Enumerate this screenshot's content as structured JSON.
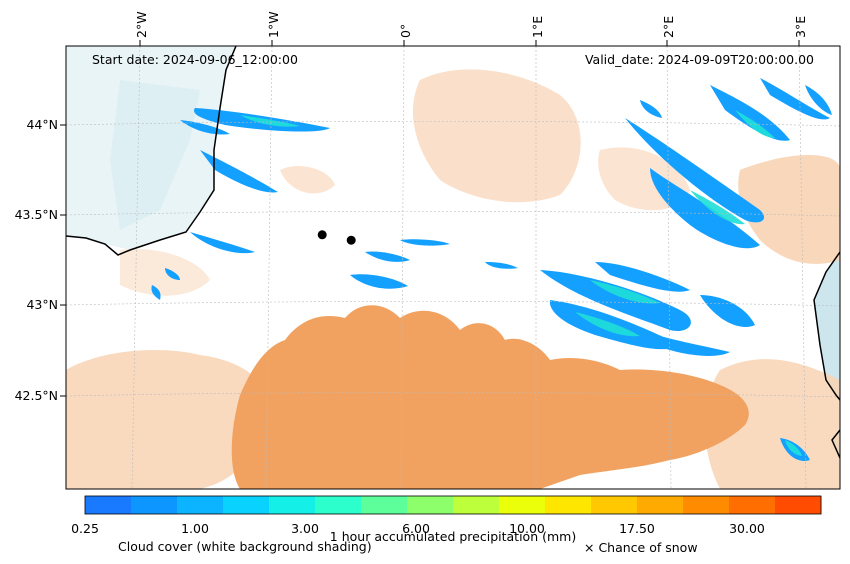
{
  "map": {
    "start_label": "Start date: 2024-09-06_12:00:00",
    "valid_label": "Valid_date: 2024-09-09T20:00:00.00",
    "lon_labels": [
      "2°W",
      "1°W",
      "0°",
      "1°E",
      "2°E",
      "3°E"
    ],
    "lat_labels": [
      "44°N",
      "43.5°N",
      "43°N",
      "42.5°N"
    ],
    "cities": [
      {
        "name": "city-marker-west",
        "lon": -0.62,
        "lat": 43.39
      },
      {
        "name": "city-marker-east",
        "lon": -0.4,
        "lat": 43.36
      }
    ]
  },
  "colorbar": {
    "title": "1 hour accumulated precipitation (mm)",
    "tick_labels": [
      "0.25",
      "1.00",
      "3.00",
      "6.00",
      "10.00",
      "17.50",
      "30.00"
    ],
    "colors": [
      "#1a7aff",
      "#0d96ff",
      "#0cb4ff",
      "#0ad2ff",
      "#14f0e8",
      "#2cffcc",
      "#5cff9a",
      "#8cff6a",
      "#bcff3a",
      "#ecff0a",
      "#ffe600",
      "#ffc800",
      "#ffaa00",
      "#ff8c00",
      "#ff6e00",
      "#ff4c00"
    ]
  },
  "legend": {
    "cloud_label": "Cloud cover (white background shading)",
    "snow_label": "× Chance of snow"
  },
  "colors": {
    "land_orange": "#f2a260",
    "light_orange": "#f8d3b4",
    "sea_blue": "#cde6ee",
    "precip_blue": "#14a0ff",
    "precip_cyan": "#1ee0d8"
  }
}
